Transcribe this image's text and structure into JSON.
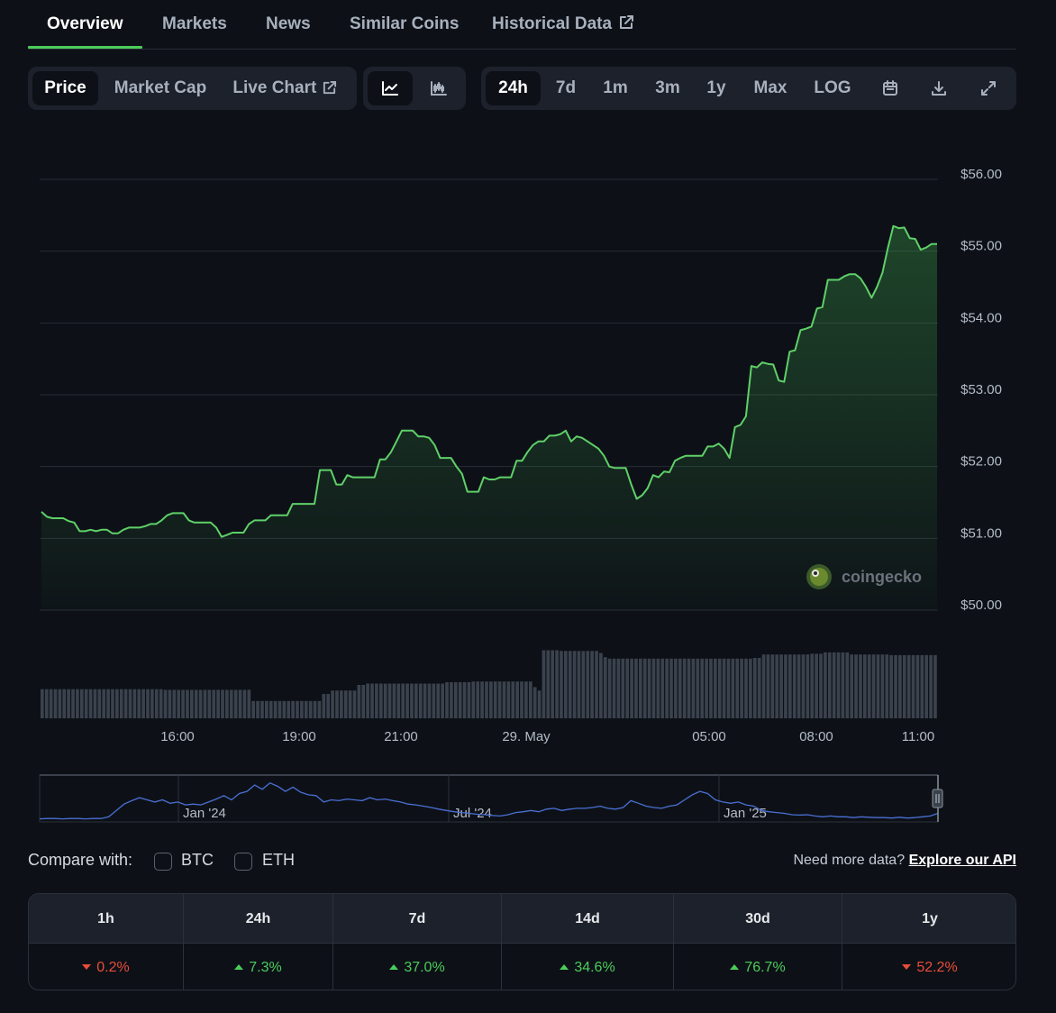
{
  "tabs": [
    {
      "label": "Overview"
    },
    {
      "label": "Markets"
    },
    {
      "label": "News"
    },
    {
      "label": "Similar Coins"
    },
    {
      "label": "Historical Data"
    }
  ],
  "chart_type_tabs": {
    "price": "Price",
    "market_cap": "Market Cap",
    "live_chart": "Live Chart"
  },
  "view_icons": [
    "line-chart-icon",
    "candlestick-icon"
  ],
  "ranges": {
    "h24": "24h",
    "d7": "7d",
    "m1": "1m",
    "m3": "3m",
    "y1": "1y",
    "max": "Max",
    "log": "LOG"
  },
  "tool_icons": [
    "calendar-icon",
    "download-icon",
    "fullscreen-icon"
  ],
  "watermark": "coingecko",
  "colors": {
    "accent": "#4bcc5a",
    "down": "#ea4c3a",
    "navigator": "#4a6fd4",
    "background": "#0d1117"
  },
  "chart_data": {
    "type": "line",
    "y_axis_labels": [
      "$56.00",
      "$55.00",
      "$54.00",
      "$53.00",
      "$52.00",
      "$51.00",
      "$50.00"
    ],
    "ylim": [
      50,
      56
    ],
    "x_labels": [
      "16:00",
      "19:00",
      "21:00",
      "29. May",
      "05:00",
      "08:00",
      "11:00"
    ],
    "price": [
      51.37,
      51.3,
      51.28,
      51.28,
      51.28,
      51.24,
      51.22,
      51.1,
      51.1,
      51.12,
      51.1,
      51.12,
      51.12,
      51.07,
      51.07,
      51.12,
      51.15,
      51.15,
      51.15,
      51.17,
      51.2,
      51.2,
      51.25,
      51.32,
      51.35,
      51.35,
      51.35,
      51.25,
      51.22,
      51.22,
      51.22,
      51.22,
      51.15,
      51.02,
      51.05,
      51.08,
      51.08,
      51.08,
      51.2,
      51.25,
      51.25,
      51.25,
      51.32,
      51.32,
      51.32,
      51.32,
      51.48,
      51.48,
      51.48,
      51.48,
      51.48,
      51.95,
      51.95,
      51.95,
      51.75,
      51.75,
      51.88,
      51.85,
      51.85,
      51.85,
      51.85,
      51.85,
      52.1,
      52.1,
      52.2,
      52.35,
      52.5,
      52.5,
      52.5,
      52.42,
      52.42,
      52.4,
      52.3,
      52.12,
      52.12,
      52.12,
      52.0,
      51.9,
      51.65,
      51.65,
      51.65,
      51.85,
      51.82,
      51.82,
      51.85,
      51.85,
      51.85,
      52.08,
      52.08,
      52.2,
      52.3,
      52.35,
      52.35,
      52.43,
      52.43,
      52.45,
      52.5,
      52.35,
      52.42,
      52.4,
      52.35,
      52.3,
      52.25,
      52.15,
      52.0,
      51.98,
      51.98,
      51.98,
      51.75,
      51.55,
      51.6,
      51.7,
      51.88,
      51.85,
      51.93,
      51.92,
      52.08,
      52.12,
      52.15,
      52.15,
      52.15,
      52.15,
      52.28,
      52.28,
      52.32,
      52.25,
      52.12,
      52.55,
      52.58,
      52.7,
      53.4,
      53.38,
      53.45,
      53.43,
      53.42,
      53.2,
      53.18,
      53.6,
      53.62,
      53.9,
      53.92,
      53.95,
      54.2,
      54.22,
      54.6,
      54.6,
      54.6,
      54.65,
      54.68,
      54.68,
      54.62,
      54.5,
      54.35,
      54.5,
      54.7,
      55.05,
      55.35,
      55.32,
      55.33,
      55.18,
      55.17,
      55.02,
      55.05,
      55.1,
      55.1
    ],
    "volume": [
      0.42,
      0.42,
      0.42,
      0.42,
      0.42,
      0.42,
      0.42,
      0.42,
      0.42,
      0.42,
      0.42,
      0.42,
      0.42,
      0.42,
      0.42,
      0.42,
      0.42,
      0.42,
      0.42,
      0.42,
      0.42,
      0.42,
      0.42,
      0.42,
      0.42,
      0.42,
      0.42,
      0.42,
      0.41,
      0.41,
      0.41,
      0.41,
      0.41,
      0.41,
      0.41,
      0.41,
      0.41,
      0.41,
      0.41,
      0.41,
      0.41,
      0.41,
      0.41,
      0.41,
      0.41,
      0.41,
      0.41,
      0.41,
      0.25,
      0.25,
      0.25,
      0.25,
      0.25,
      0.25,
      0.25,
      0.25,
      0.25,
      0.25,
      0.25,
      0.25,
      0.25,
      0.25,
      0.25,
      0.25,
      0.35,
      0.35,
      0.4,
      0.4,
      0.4,
      0.4,
      0.4,
      0.4,
      0.48,
      0.48,
      0.5,
      0.5,
      0.5,
      0.5,
      0.5,
      0.5,
      0.5,
      0.5,
      0.5,
      0.5,
      0.5,
      0.5,
      0.5,
      0.5,
      0.5,
      0.5,
      0.5,
      0.5,
      0.52,
      0.52,
      0.52,
      0.52,
      0.52,
      0.52,
      0.53,
      0.53,
      0.53,
      0.53,
      0.53,
      0.53,
      0.53,
      0.53,
      0.53,
      0.53,
      0.53,
      0.53,
      0.53,
      0.53,
      0.45,
      0.4,
      0.98,
      0.98,
      0.98,
      0.98,
      0.97,
      0.97,
      0.97,
      0.97,
      0.97,
      0.97,
      0.97,
      0.97,
      0.97,
      0.94,
      0.88,
      0.86,
      0.86,
      0.86,
      0.86,
      0.86,
      0.86,
      0.86,
      0.86,
      0.86,
      0.86,
      0.86,
      0.86,
      0.86,
      0.86,
      0.86,
      0.86,
      0.86,
      0.86,
      0.86,
      0.86,
      0.86,
      0.86,
      0.86,
      0.86,
      0.86,
      0.86,
      0.86,
      0.86,
      0.86,
      0.86,
      0.86,
      0.86,
      0.86,
      0.87,
      0.87,
      0.92,
      0.92,
      0.92,
      0.92,
      0.92,
      0.92,
      0.92,
      0.92,
      0.92,
      0.92,
      0.92,
      0.93,
      0.93,
      0.93,
      0.95,
      0.95,
      0.95,
      0.95,
      0.95,
      0.95,
      0.92,
      0.92,
      0.92,
      0.92,
      0.92,
      0.92,
      0.92,
      0.92,
      0.92,
      0.91,
      0.91,
      0.91,
      0.91,
      0.91,
      0.91,
      0.91,
      0.91,
      0.91,
      0.91,
      0.91
    ],
    "navigator": {
      "x_labels": [
        "Jan '24",
        "Jul '24",
        "Jan '25"
      ],
      "values": [
        0.05,
        0.06,
        0.06,
        0.05,
        0.06,
        0.06,
        0.05,
        0.06,
        0.06,
        0.1,
        0.25,
        0.4,
        0.48,
        0.55,
        0.5,
        0.45,
        0.5,
        0.42,
        0.45,
        0.38,
        0.4,
        0.38,
        0.45,
        0.52,
        0.6,
        0.5,
        0.65,
        0.7,
        0.85,
        0.75,
        0.9,
        0.82,
        0.7,
        0.8,
        0.68,
        0.62,
        0.6,
        0.45,
        0.5,
        0.48,
        0.52,
        0.5,
        0.48,
        0.55,
        0.5,
        0.52,
        0.48,
        0.45,
        0.4,
        0.38,
        0.35,
        0.32,
        0.28,
        0.25,
        0.22,
        0.2,
        0.18,
        0.16,
        0.15,
        0.13,
        0.12,
        0.15,
        0.2,
        0.22,
        0.25,
        0.22,
        0.28,
        0.3,
        0.25,
        0.28,
        0.3,
        0.3,
        0.32,
        0.35,
        0.3,
        0.28,
        0.32,
        0.48,
        0.42,
        0.35,
        0.32,
        0.3,
        0.35,
        0.38,
        0.5,
        0.62,
        0.7,
        0.65,
        0.5,
        0.45,
        0.42,
        0.45,
        0.38,
        0.35,
        0.25,
        0.22,
        0.2,
        0.18,
        0.15,
        0.14,
        0.15,
        0.12,
        0.1,
        0.12,
        0.1,
        0.1,
        0.08,
        0.1,
        0.09,
        0.08,
        0.08,
        0.07,
        0.09,
        0.07,
        0.08,
        0.1,
        0.12,
        0.18
      ]
    }
  },
  "compare": {
    "label": "Compare with:",
    "options": [
      "BTC",
      "ETH"
    ]
  },
  "api": {
    "text": "Need more data?",
    "link": "Explore our API"
  },
  "performance": [
    {
      "period": "1h",
      "change": "0.2%",
      "direction": "down"
    },
    {
      "period": "24h",
      "change": "7.3%",
      "direction": "up"
    },
    {
      "period": "7d",
      "change": "37.0%",
      "direction": "up"
    },
    {
      "period": "14d",
      "change": "34.6%",
      "direction": "up"
    },
    {
      "period": "30d",
      "change": "76.7%",
      "direction": "up"
    },
    {
      "period": "1y",
      "change": "52.2%",
      "direction": "down"
    }
  ]
}
